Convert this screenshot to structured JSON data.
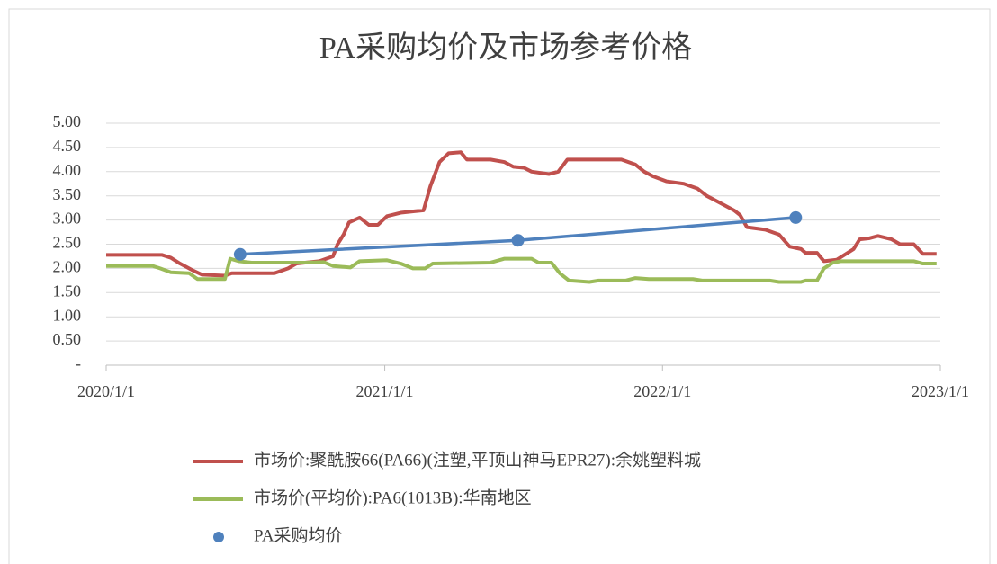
{
  "chart_data": {
    "type": "line",
    "title": "PA采购均价及市场参考价格",
    "xlim": [
      "2020/1/1",
      "2023/1/1"
    ],
    "xticks": [
      "2020/1/1",
      "2021/1/1",
      "2022/1/1",
      "2023/1/1"
    ],
    "ylim": [
      0,
      5
    ],
    "yticks": [
      {
        "value": 0,
        "label": "-"
      },
      {
        "value": 0.5,
        "label": "0.50"
      },
      {
        "value": 1,
        "label": "1.00"
      },
      {
        "value": 1.5,
        "label": "1.50"
      },
      {
        "value": 2,
        "label": "2.00"
      },
      {
        "value": 2.5,
        "label": "2.50"
      },
      {
        "value": 3,
        "label": "3.00"
      },
      {
        "value": 3.5,
        "label": "3.50"
      },
      {
        "value": 4,
        "label": "4.00"
      },
      {
        "value": 4.5,
        "label": "4.50"
      },
      {
        "value": 5,
        "label": "5.00"
      }
    ],
    "grid": true,
    "legend": "bottom",
    "series": [
      {
        "name": "市场价:聚酰胺66(PA66)(注塑,平顶山神马EPR27):余姚塑料城",
        "color": "#c0504d",
        "x": [
          "2020/1/1",
          "2020/3/14",
          "2020/3/26",
          "2020/4/7",
          "2020/4/25",
          "2020/5/6",
          "2020/6/5",
          "2020/6/14",
          "2020/8/9",
          "2020/8/27",
          "2020/9/7",
          "2020/10/7",
          "2020/10/25",
          "2020/10/31",
          "2020/11/8",
          "2020/11/15",
          "2020/11/29",
          "2020/12/11",
          "2020/12/23",
          "2021/1/4",
          "2021/1/22",
          "2021/2/9",
          "2021/2/21",
          "2021/3/2",
          "2021/3/14",
          "2021/3/26",
          "2021/4/11",
          "2021/4/19",
          "2021/5/20",
          "2021/6/7",
          "2021/6/19",
          "2021/7/3",
          "2021/7/13",
          "2021/8/5",
          "2021/8/17",
          "2021/8/29",
          "2021/11/8",
          "2021/11/26",
          "2021/12/8",
          "2021/12/20",
          "2022/1/6",
          "2022/1/29",
          "2022/2/16",
          "2022/2/28",
          "2022/3/18",
          "2022/4/5",
          "2022/4/13",
          "2022/4/22",
          "2022/5/16",
          "2022/6/3",
          "2022/6/17",
          "2022/7/2",
          "2022/7/8",
          "2022/7/23",
          "2022/8/1",
          "2022/8/18",
          "2022/8/30",
          "2022/9/9",
          "2022/9/17",
          "2022/9/29",
          "2022/10/11",
          "2022/10/29",
          "2022/11/9",
          "2022/11/27",
          "2022/12/9",
          "2022/12/27"
        ],
        "values": [
          2.28,
          2.28,
          2.22,
          2.1,
          1.95,
          1.87,
          1.85,
          1.9,
          1.9,
          2.0,
          2.1,
          2.15,
          2.25,
          2.5,
          2.7,
          2.95,
          3.05,
          2.9,
          2.9,
          3.08,
          3.15,
          3.18,
          3.2,
          3.7,
          4.2,
          4.38,
          4.4,
          4.25,
          4.25,
          4.2,
          4.1,
          4.08,
          4.0,
          3.95,
          4.0,
          4.25,
          4.25,
          4.15,
          4.0,
          3.9,
          3.8,
          3.75,
          3.65,
          3.5,
          3.35,
          3.2,
          3.1,
          2.85,
          2.8,
          2.7,
          2.45,
          2.4,
          2.32,
          2.32,
          2.15,
          2.18,
          2.3,
          2.4,
          2.6,
          2.62,
          2.67,
          2.6,
          2.5,
          2.5,
          2.3,
          2.3
        ]
      },
      {
        "name": "市场价(平均价):PA6(1013B):华南地区",
        "color": "#9bbb59",
        "x": [
          "2020/1/1",
          "2020/3/2",
          "2020/3/12",
          "2020/3/26",
          "2020/4/19",
          "2020/4/30",
          "2020/6/5",
          "2020/6/12",
          "2020/6/23",
          "2020/7/10",
          "2020/9/19",
          "2020/10/13",
          "2020/10/25",
          "2020/11/17",
          "2020/11/29",
          "2021/1/4",
          "2021/1/22",
          "2021/2/7",
          "2021/2/23",
          "2021/3/5",
          "2021/5/20",
          "2021/6/7",
          "2021/7/13",
          "2021/7/22",
          "2021/8/8",
          "2021/8/19",
          "2021/8/31",
          "2021/9/27",
          "2021/10/9",
          "2021/11/14",
          "2021/11/26",
          "2021/12/14",
          "2022/2/10",
          "2022/2/22",
          "2022/5/22",
          "2022/6/3",
          "2022/7/2",
          "2022/7/8",
          "2022/7/23",
          "2022/8/1",
          "2022/8/13",
          "2022/8/24",
          "2022/11/27",
          "2022/12/9",
          "2022/12/27"
        ],
        "values": [
          2.05,
          2.05,
          2.0,
          1.92,
          1.9,
          1.78,
          1.78,
          2.2,
          2.15,
          2.12,
          2.12,
          2.13,
          2.05,
          2.02,
          2.15,
          2.17,
          2.1,
          2.0,
          2.0,
          2.1,
          2.12,
          2.2,
          2.2,
          2.12,
          2.12,
          1.9,
          1.75,
          1.72,
          1.75,
          1.75,
          1.8,
          1.78,
          1.78,
          1.75,
          1.75,
          1.72,
          1.72,
          1.75,
          1.75,
          2.0,
          2.12,
          2.15,
          2.15,
          2.1,
          2.1
        ]
      },
      {
        "name": "PA采购均价",
        "color": "#4f81bd",
        "markers": true,
        "x": [
          "2020/6/25",
          "2021/6/25",
          "2022/6/25"
        ],
        "values": [
          2.29,
          2.58,
          3.05
        ]
      }
    ]
  }
}
